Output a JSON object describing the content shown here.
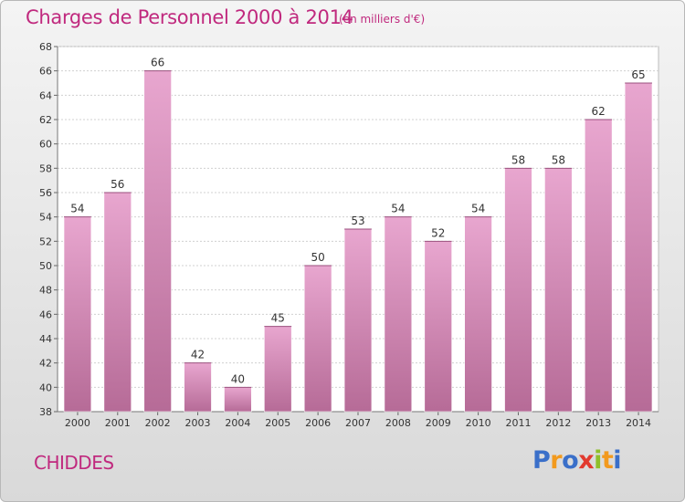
{
  "header": {
    "title": "Charges de Personnel 2000 à 2014",
    "subtitle": "(en milliers d'€)"
  },
  "footer": {
    "commune": "CHIDDES",
    "logo_letters": [
      {
        "ch": "P",
        "color": "#3a6fc9"
      },
      {
        "ch": "r",
        "color": "#f29a1e"
      },
      {
        "ch": "o",
        "color": "#3a6fc9"
      },
      {
        "ch": "x",
        "color": "#e23a2f"
      },
      {
        "ch": "i",
        "color": "#8fbf2a"
      },
      {
        "ch": "t",
        "color": "#f29a1e"
      },
      {
        "ch": "i",
        "color": "#3a6fc9"
      }
    ]
  },
  "chart_data": {
    "type": "bar",
    "categories": [
      "2000",
      "2001",
      "2002",
      "2003",
      "2004",
      "2005",
      "2006",
      "2007",
      "2008",
      "2009",
      "2010",
      "2011",
      "2012",
      "2013",
      "2014"
    ],
    "values": [
      54,
      56,
      66,
      42,
      40,
      45,
      50,
      53,
      54,
      52,
      54,
      58,
      58,
      62,
      65
    ],
    "title": "Charges de Personnel 2000 à 2014",
    "xlabel": "",
    "ylabel": "",
    "ylim": [
      38,
      68
    ],
    "yticks": [
      38,
      40,
      42,
      44,
      46,
      48,
      50,
      52,
      54,
      56,
      58,
      60,
      62,
      64,
      66,
      68
    ],
    "grid": true,
    "bar_color_top": "#e8a6cf",
    "bar_color_bottom": "#b66b97"
  }
}
